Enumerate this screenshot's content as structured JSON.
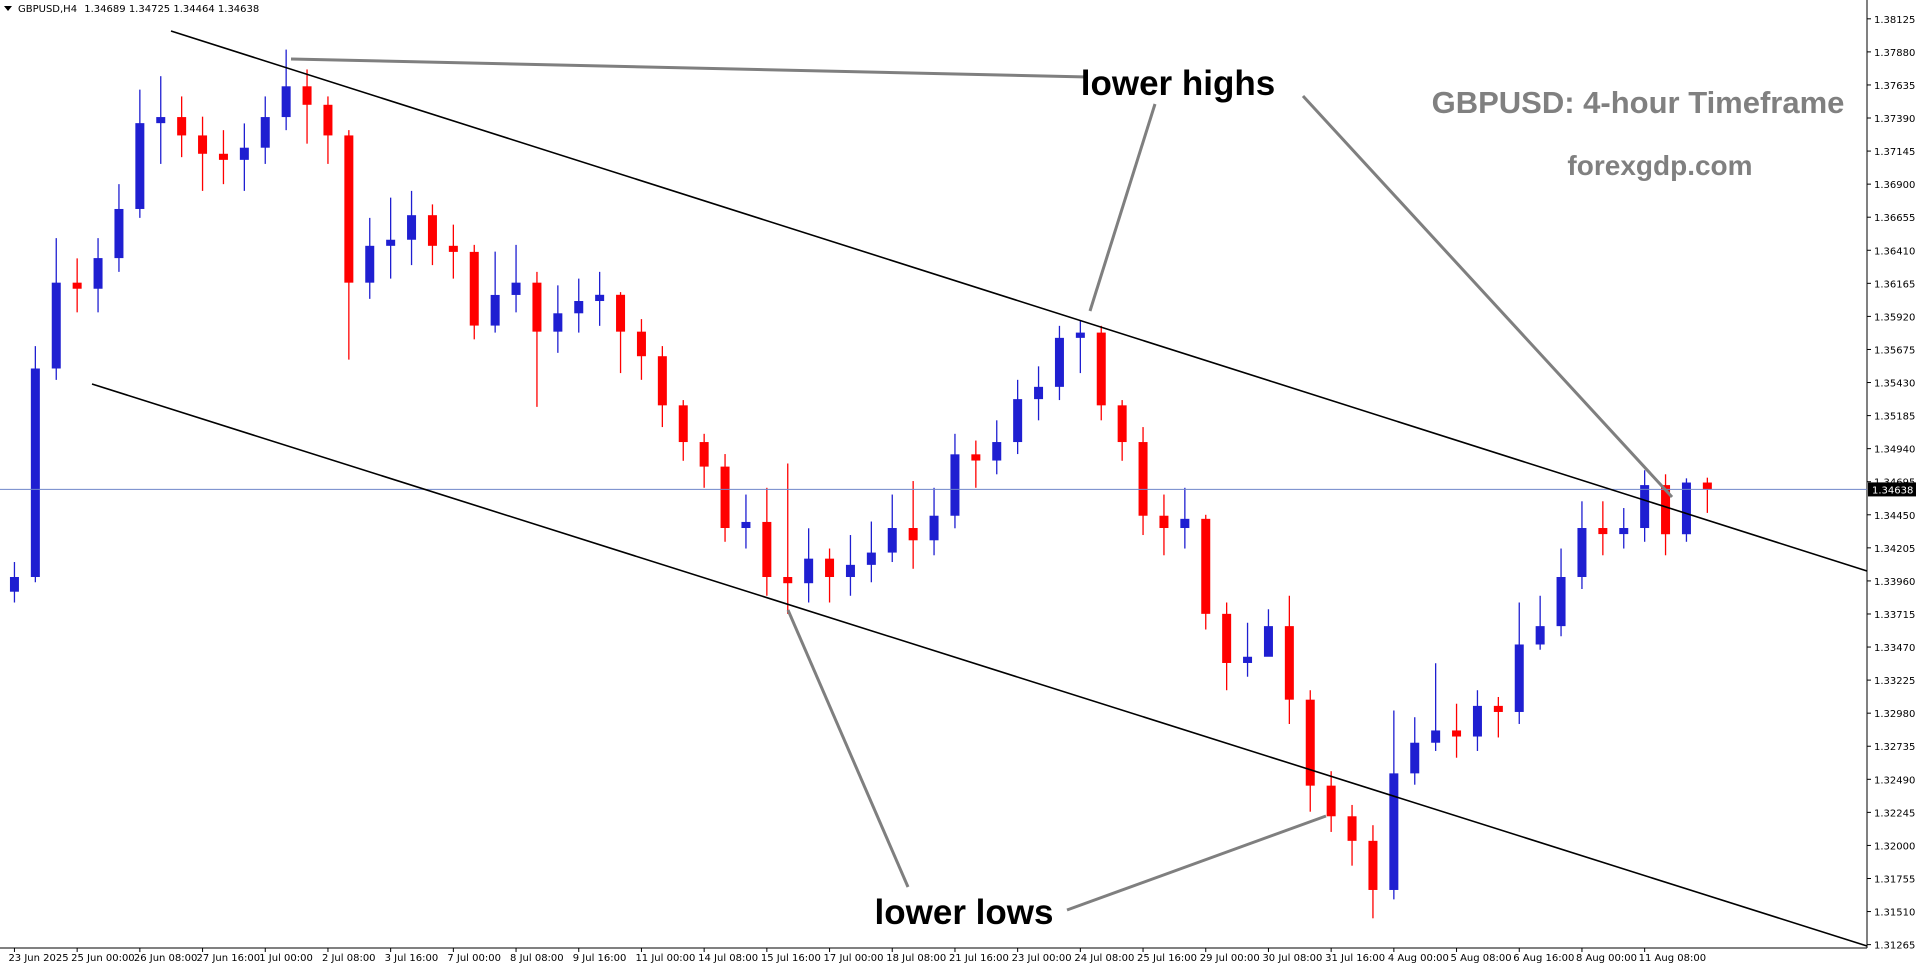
{
  "chart_data": {
    "type": "candlestick",
    "symbol": "GBPUSD,H4",
    "annotations": [
      "lower highs",
      "lower lows",
      "GBPUSD: 4-hour Timeframe",
      "forexgdp.com"
    ],
    "up_color": "#1f1fd1",
    "down_color": "#ff0000",
    "price_line_color": "#6f86c9",
    "ylim": [
      1.3124,
      1.3822
    ],
    "yticks": [
      1.38125,
      {
        "value": 1.3788,
        "label": "1.37880"
      },
      1.37635,
      {
        "value": 1.3739,
        "label": "1.37390"
      },
      1.37145,
      {
        "value": 1.369,
        "label": "1.36900"
      },
      1.36655,
      {
        "value": 1.3641,
        "label": "1.36410"
      },
      1.36165,
      {
        "value": 1.3592,
        "label": "1.35920"
      },
      1.35675,
      {
        "value": 1.3543,
        "label": "1.35430"
      },
      1.35185,
      {
        "value": 1.3494,
        "label": "1.34940"
      },
      1.34695,
      {
        "value": 1.3445,
        "label": "1.34450"
      },
      1.34205,
      {
        "value": 1.3396,
        "label": "1.33960"
      },
      1.33715,
      {
        "value": 1.3347,
        "label": "1.33470"
      },
      1.33225,
      {
        "value": 1.3298,
        "label": "1.32980"
      },
      1.32735,
      {
        "value": 1.3249,
        "label": "1.32490"
      },
      1.32245,
      {
        "value": 1.32,
        "label": "1.32000"
      },
      1.31755,
      {
        "value": 1.3151,
        "label": "1.31510"
      },
      1.31265
    ],
    "categories": [
      "23 Jun 2025",
      null,
      null,
      "25 Jun 00:00",
      null,
      null,
      "26 Jun 08:00",
      null,
      null,
      "27 Jun 16:00",
      null,
      null,
      "1 Jul 00:00",
      null,
      null,
      "2 Jul 08:00",
      null,
      null,
      "3 Jul 16:00",
      null,
      null,
      "7 Jul 00:00",
      null,
      null,
      "8 Jul 08:00",
      null,
      null,
      "9 Jul 16:00",
      null,
      null,
      "11 Jul 00:00",
      null,
      null,
      "14 Jul 08:00",
      null,
      null,
      "15 Jul 16:00",
      null,
      null,
      "17 Jul 00:00",
      null,
      null,
      "18 Jul 08:00",
      null,
      null,
      "21 Jul 16:00",
      null,
      null,
      "23 Jul 00:00",
      null,
      null,
      "24 Jul 08:00",
      null,
      null,
      "25 Jul 16:00",
      null,
      null,
      "29 Jul 00:00",
      null,
      null,
      "30 Jul 08:00",
      null,
      null,
      "31 Jul 16:00",
      null,
      null,
      "4 Aug 00:00",
      null,
      null,
      "5 Aug 08:00",
      null,
      null,
      "6 Aug 16:00",
      null,
      null,
      "8 Aug 00:00",
      null,
      null,
      "11 Aug 08:00",
      null,
      null,
      null
    ],
    "ohlc": {
      "open": [
        1.3388,
        1.33989,
        1.35534,
        1.3617,
        1.36125,
        1.36352,
        1.36716,
        1.37352,
        1.37397,
        1.37261,
        1.37125,
        1.3708,
        1.3717,
        1.37397,
        1.37625,
        1.37488,
        1.37261,
        1.3617,
        1.36443,
        1.36488,
        1.3667,
        1.36443,
        1.36398,
        1.35852,
        1.36079,
        1.3617,
        1.35807,
        1.35943,
        1.36034,
        1.3608,
        1.35807,
        1.35625,
        1.35261,
        1.34989,
        1.34807,
        1.34352,
        1.34397,
        1.33989,
        1.33943,
        1.34125,
        1.33989,
        1.34079,
        1.3417,
        1.34352,
        1.34261,
        1.34443,
        1.34898,
        1.34852,
        1.34989,
        1.35307,
        1.35398,
        1.35761,
        1.358,
        1.35261,
        1.34989,
        1.34443,
        1.34352,
        1.3442,
        1.33716,
        1.33352,
        1.33398,
        1.33625,
        1.3308,
        1.32443,
        1.32216,
        1.32034,
        1.3167,
        1.32534,
        1.32761,
        1.32852,
        1.32807,
        1.33034,
        1.32989,
        1.33489,
        1.33625,
        1.33989,
        1.34352,
        1.34307,
        1.34352,
        1.3467,
        1.34306,
        1.34689
      ],
      "high": [
        1.341,
        1.357,
        1.365,
        1.3635,
        1.365,
        1.369,
        1.376,
        1.377,
        1.3755,
        1.374,
        1.373,
        1.3735,
        1.3755,
        1.37897,
        1.3775,
        1.3755,
        1.373,
        1.3665,
        1.368,
        1.3685,
        1.3675,
        1.366,
        1.3645,
        1.364,
        1.3645,
        1.3625,
        1.3615,
        1.362,
        1.3625,
        1.361,
        1.359,
        1.357,
        1.353,
        1.3505,
        1.349,
        1.346,
        1.3465,
        1.3483,
        1.3435,
        1.342,
        1.343,
        1.344,
        1.346,
        1.347,
        1.3465,
        1.3505,
        1.35,
        1.3515,
        1.3545,
        1.3555,
        1.3585,
        1.3589,
        1.3585,
        1.353,
        1.351,
        1.346,
        1.3465,
        1.3445,
        1.338,
        1.3365,
        1.3375,
        1.3385,
        1.3315,
        1.3255,
        1.323,
        1.3215,
        1.33,
        1.3295,
        1.3335,
        1.3305,
        1.3315,
        1.331,
        1.338,
        1.3385,
        1.342,
        1.3455,
        1.3455,
        1.345,
        1.3478,
        1.3475,
        1.3472,
        1.34725
      ],
      "low": [
        1.338,
        1.3395,
        1.3545,
        1.3595,
        1.3595,
        1.3625,
        1.3665,
        1.3705,
        1.371,
        1.3685,
        1.369,
        1.3685,
        1.3705,
        1.373,
        1.372,
        1.3705,
        1.356,
        1.3605,
        1.362,
        1.363,
        1.363,
        1.362,
        1.3575,
        1.358,
        1.3595,
        1.3525,
        1.3565,
        1.358,
        1.3585,
        1.355,
        1.3545,
        1.351,
        1.3485,
        1.3465,
        1.3425,
        1.342,
        1.3385,
        1.33716,
        1.338,
        1.338,
        1.3385,
        1.3395,
        1.341,
        1.3405,
        1.3415,
        1.3435,
        1.3465,
        1.3475,
        1.349,
        1.3515,
        1.353,
        1.355,
        1.3515,
        1.3485,
        1.343,
        1.3415,
        1.342,
        1.336,
        1.3315,
        1.3325,
        1.3345,
        1.329,
        1.3225,
        1.321,
        1.3185,
        1.3146,
        1.316,
        1.3245,
        1.327,
        1.3265,
        1.327,
        1.328,
        1.329,
        1.3345,
        1.3355,
        1.339,
        1.3415,
        1.342,
        1.3425,
        1.3415,
        1.3425,
        1.34464
      ],
      "close": [
        1.33989,
        1.35534,
        1.3617,
        1.36125,
        1.36352,
        1.36716,
        1.37352,
        1.37397,
        1.37261,
        1.37125,
        1.3708,
        1.3717,
        1.37397,
        1.37625,
        1.37488,
        1.37261,
        1.3617,
        1.36443,
        1.36488,
        1.3667,
        1.36443,
        1.36398,
        1.35852,
        1.36079,
        1.3617,
        1.35807,
        1.35943,
        1.36034,
        1.3608,
        1.35807,
        1.35625,
        1.35261,
        1.34989,
        1.34807,
        1.34352,
        1.34397,
        1.33989,
        1.33943,
        1.34125,
        1.33989,
        1.34079,
        1.3417,
        1.34352,
        1.34261,
        1.34443,
        1.34898,
        1.34852,
        1.34989,
        1.35307,
        1.35398,
        1.35761,
        1.358,
        1.35261,
        1.34989,
        1.34443,
        1.34352,
        1.3442,
        1.33716,
        1.33352,
        1.33398,
        1.33625,
        1.3308,
        1.32443,
        1.32216,
        1.32034,
        1.3167,
        1.32534,
        1.32761,
        1.32852,
        1.32807,
        1.33034,
        1.32989,
        1.33489,
        1.33625,
        1.33989,
        1.34352,
        1.34307,
        1.34352,
        1.3467,
        1.34306,
        1.34689,
        1.34638
      ]
    }
  }
}
